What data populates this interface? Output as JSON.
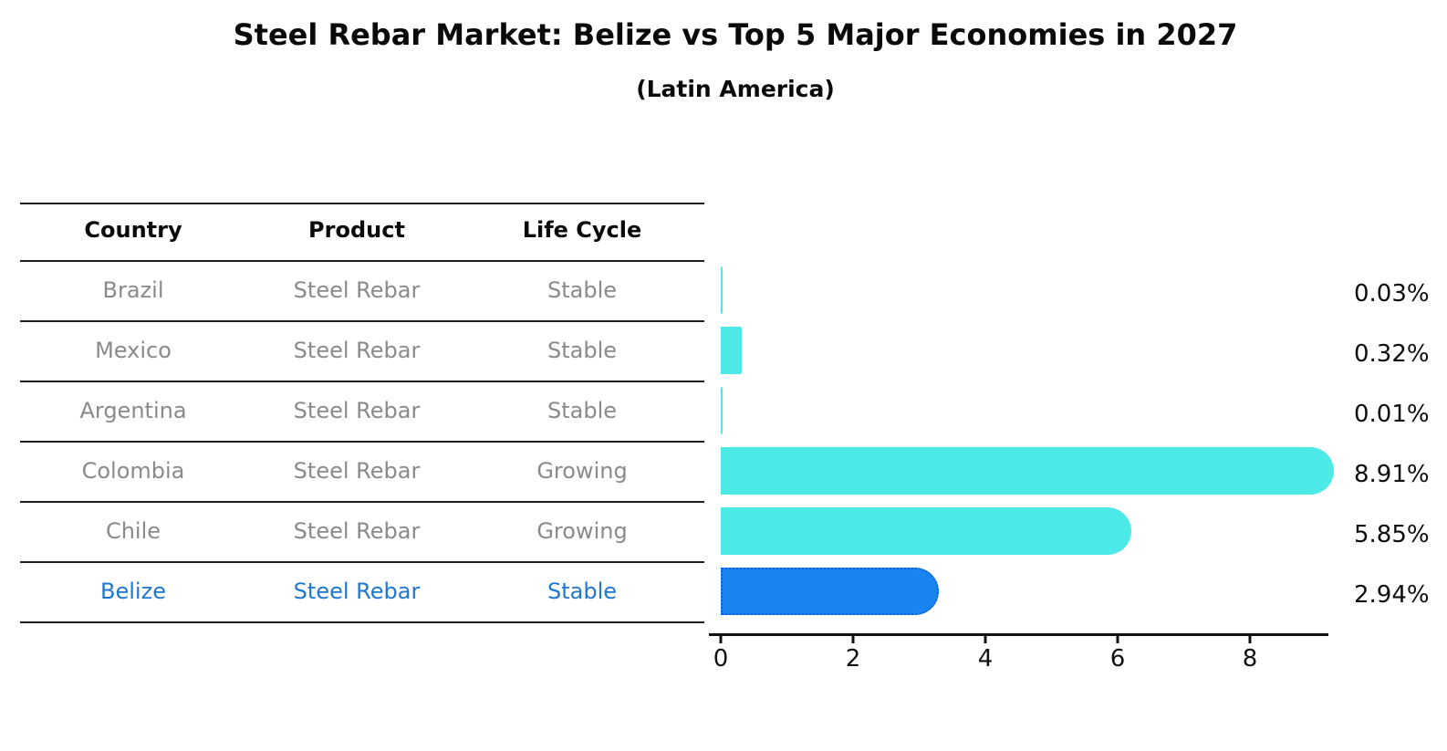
{
  "title": "Steel Rebar Market: Belize vs Top 5 Major Economies in 2027",
  "subtitle": "(Latin America)",
  "table": {
    "headers": [
      "Country",
      "Product",
      "Life Cycle"
    ],
    "rows": [
      {
        "country": "Brazil",
        "product": "Steel Rebar",
        "life_cycle": "Stable",
        "highlight": false
      },
      {
        "country": "Mexico",
        "product": "Steel Rebar",
        "life_cycle": "Stable",
        "highlight": false
      },
      {
        "country": "Argentina",
        "product": "Steel Rebar",
        "life_cycle": "Stable",
        "highlight": false
      },
      {
        "country": "Colombia",
        "product": "Steel Rebar",
        "life_cycle": "Growing",
        "highlight": false
      },
      {
        "country": "Chile",
        "product": "Steel Rebar",
        "life_cycle": "Growing",
        "highlight": false
      },
      {
        "country": "Belize",
        "product": "Steel Rebar",
        "life_cycle": "Stable",
        "highlight": true
      }
    ]
  },
  "chart_data": {
    "type": "bar",
    "orientation": "horizontal",
    "title": "Steel Rebar Market: Belize vs Top 5 Major Economies in 2027",
    "subtitle": "(Latin America)",
    "categories": [
      "Brazil",
      "Mexico",
      "Argentina",
      "Colombia",
      "Chile",
      "Belize"
    ],
    "values": [
      0.03,
      0.32,
      0.01,
      8.91,
      5.85,
      2.94
    ],
    "value_labels": [
      "0.03%",
      "0.32%",
      "0.01%",
      "8.91%",
      "5.85%",
      "2.94%"
    ],
    "units": "%",
    "xticks": [
      0,
      2,
      4,
      6,
      8
    ],
    "xlim": [
      0,
      9.3
    ],
    "grid": false,
    "legend": false,
    "highlight_category": "Belize",
    "highlight_index": 5
  },
  "colors": {
    "bar": "#4DE9E6",
    "highlight_bar": "#1A85F0",
    "highlight_bar_border": "#0F62DC",
    "highlight_text": "#1E78D0",
    "row_text": "#8a8a8a",
    "header_text": "#0a0a0a",
    "axis": "#111111",
    "label_text": "#0d0d0d"
  }
}
